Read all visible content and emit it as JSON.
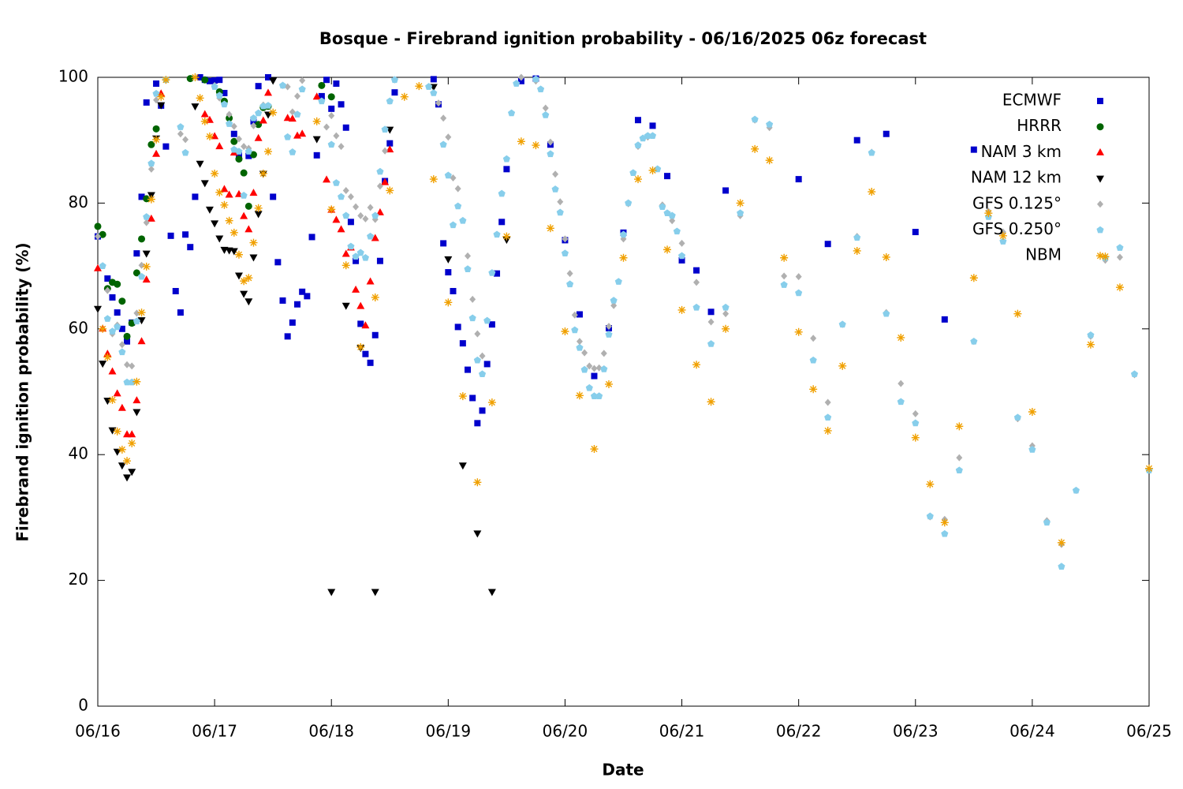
{
  "chart_data": {
    "type": "scatter",
    "title": "Bosque - Firebrand ignition probability - 06/16/2025 06z forecast",
    "xlabel": "Date",
    "ylabel": "Firebrand ignition probability (%)",
    "xlim": [
      0,
      216
    ],
    "ylim": [
      0,
      100
    ],
    "xticks": [
      {
        "value": 0,
        "label": "06/16"
      },
      {
        "value": 24,
        "label": "06/17"
      },
      {
        "value": 48,
        "label": "06/18"
      },
      {
        "value": 72,
        "label": "06/19"
      },
      {
        "value": 96,
        "label": "06/20"
      },
      {
        "value": 120,
        "label": "06/21"
      },
      {
        "value": 144,
        "label": "06/22"
      },
      {
        "value": 168,
        "label": "06/23"
      },
      {
        "value": 192,
        "label": "06/24"
      },
      {
        "value": 216,
        "label": "06/25"
      }
    ],
    "yticks": [
      0,
      20,
      40,
      60,
      80,
      100
    ],
    "legend": "top-right",
    "series": [
      {
        "name": "ECMWF",
        "color": "#0000cc",
        "marker": "square",
        "x": [
          0,
          2,
          3,
          4,
          5,
          6,
          7,
          8,
          9,
          10,
          12,
          13,
          14,
          15,
          16,
          17,
          18,
          19,
          20,
          21,
          22,
          23,
          24,
          25,
          26,
          28,
          29,
          31,
          32,
          33,
          35,
          36,
          37,
          38,
          39,
          40,
          41,
          42,
          43,
          44,
          45,
          46,
          47,
          48,
          49,
          50,
          51,
          52,
          53,
          54,
          55,
          56,
          57,
          58,
          59,
          60,
          61,
          69,
          70,
          71,
          72,
          73,
          74,
          75,
          76,
          77,
          78,
          79,
          80,
          81,
          82,
          83,
          84,
          87,
          90,
          93,
          96,
          99,
          102,
          105,
          108,
          111,
          114,
          117,
          120,
          123,
          126,
          129,
          144,
          150,
          156,
          162,
          168,
          174,
          180
        ],
        "values": [
          74.7,
          68,
          65,
          62.6,
          60,
          58,
          61,
          72,
          81,
          96,
          99,
          95.5,
          89,
          74.8,
          66,
          62.6,
          75,
          73,
          81,
          100,
          99.6,
          99.4,
          99.5,
          99.6,
          97.5,
          91,
          87.6,
          87.5,
          93,
          98.6,
          100,
          81,
          70.6,
          64.5,
          58.8,
          61,
          63.9,
          65.9,
          65.2,
          74.6,
          87.6,
          97,
          99.6,
          95,
          99,
          95.7,
          92,
          77,
          70.8,
          60.8,
          56,
          54.6,
          59,
          70.8,
          83.5,
          89.5,
          97.6,
          99.7,
          95.7,
          73.6,
          69,
          66,
          60.3,
          57.7,
          53.5,
          49,
          45,
          47,
          54.4,
          60.7,
          68.8,
          77,
          85.4,
          99.4,
          99.8,
          89.3,
          74.1,
          62.3,
          52.5,
          60.1,
          75.3,
          93.2,
          92.3,
          84.3,
          70.9,
          69.3,
          62.7,
          82,
          83.8,
          73.5,
          90,
          91,
          75.4,
          61.5,
          88.5
        ]
      },
      {
        "name": "HRRR",
        "color": "#006400",
        "marker": "circle",
        "x": [
          0,
          1,
          2,
          3,
          4,
          5,
          6,
          7,
          8,
          9,
          10,
          11,
          12,
          19,
          22,
          25,
          26,
          27,
          28,
          29,
          30,
          31,
          32,
          33,
          34,
          35,
          46,
          48
        ],
        "values": [
          76.3,
          75,
          66.4,
          67.4,
          67.1,
          64.4,
          58.8,
          60.9,
          68.9,
          74.3,
          80.7,
          89.3,
          91.8,
          99.8,
          99.6,
          97.7,
          96.2,
          93.5,
          89.8,
          87,
          84.8,
          79.5,
          87.7,
          92.5,
          95.2,
          95.4,
          98.7,
          96.9
        ]
      },
      {
        "name": "NAM 3 km",
        "color": "#ff0000",
        "marker": "triangle-up",
        "x": [
          0,
          1,
          2,
          3,
          4,
          5,
          6,
          7,
          8,
          9,
          10,
          11,
          12,
          13,
          22,
          23,
          24,
          25,
          26,
          27,
          28,
          29,
          30,
          31,
          32,
          33,
          34,
          35,
          39,
          40,
          41,
          42,
          45,
          47,
          48,
          49,
          50,
          51,
          52,
          53,
          54,
          55,
          56,
          57,
          58,
          59,
          60
        ],
        "values": [
          69.6,
          60,
          56,
          53.2,
          49.7,
          47.4,
          43.2,
          43.2,
          48.6,
          58,
          67.8,
          77.5,
          87.8,
          97.4,
          94.1,
          93.2,
          90.6,
          89,
          82.2,
          81.3,
          88,
          81.4,
          77.9,
          75.8,
          81.6,
          90.3,
          93.1,
          97.5,
          93.5,
          93.4,
          90.7,
          91,
          96.9,
          83.7,
          78.9,
          77.3,
          75.8,
          71.9,
          72.9,
          66.2,
          63.6,
          60.5,
          67.5,
          74.4,
          78.5,
          83.3,
          88.5
        ]
      },
      {
        "name": "NAM 12 km",
        "color": "#000000",
        "marker": "triangle-down",
        "x": [
          0,
          1,
          2,
          3,
          4,
          5,
          6,
          7,
          8,
          9,
          10,
          11,
          12,
          13,
          20,
          21,
          22,
          23,
          24,
          25,
          26,
          27,
          28,
          29,
          30,
          31,
          32,
          33,
          34,
          35,
          36,
          45,
          48,
          51,
          54,
          57,
          60,
          69,
          72,
          75,
          78,
          81,
          84
        ],
        "values": [
          63.2,
          54.5,
          48.6,
          43.9,
          40.5,
          38.3,
          36.4,
          37.3,
          46.8,
          61.4,
          72,
          81.3,
          90.3,
          95.6,
          95.4,
          86.3,
          83.2,
          79,
          76.8,
          74.4,
          72.6,
          72.5,
          72.4,
          68.5,
          65.6,
          64.4,
          71.4,
          78.3,
          84.7,
          94.1,
          99.5,
          90.2,
          18.2,
          63.7,
          57,
          18.2,
          91.7,
          98.5,
          71.1,
          38.3,
          27.5,
          18.2,
          74.2
        ]
      },
      {
        "name": "GFS 0.125°",
        "color": "#b0b0b0",
        "marker": "diamond",
        "x": [
          0,
          2,
          3,
          4,
          5,
          6,
          7,
          8,
          9,
          10,
          11,
          12,
          14,
          17,
          18,
          24,
          25,
          27,
          28,
          29,
          30,
          31,
          32,
          34,
          38,
          39,
          40,
          41,
          42,
          47,
          48,
          49,
          50,
          51,
          52,
          53,
          54,
          55,
          56,
          57,
          58,
          59,
          60,
          61,
          70,
          71,
          72,
          73,
          74,
          76,
          77,
          78,
          79,
          87,
          90,
          92,
          93,
          94,
          95,
          96,
          97,
          98,
          99,
          100,
          101,
          102,
          103,
          104,
          105,
          106,
          108,
          109,
          111,
          113,
          116,
          118,
          120,
          123,
          126,
          129,
          132,
          135,
          138,
          141,
          144,
          147,
          150,
          153,
          156,
          159,
          162,
          165,
          168,
          171,
          174,
          177,
          180,
          183,
          186,
          189,
          192,
          195,
          198,
          201,
          204,
          207,
          210,
          213,
          216
        ],
        "values": [
          74.7,
          66.1,
          59.2,
          60.6,
          57.5,
          54.3,
          54.1,
          62.5,
          70.1,
          76.9,
          85.4,
          96.4,
          99.7,
          91,
          90.1,
          98.7,
          96.7,
          94.1,
          92.2,
          90.2,
          89,
          88.7,
          92.3,
          95.6,
          98.7,
          98.5,
          94.5,
          97,
          99.5,
          92.1,
          93.9,
          90.7,
          89,
          82,
          81,
          79.4,
          78,
          77.5,
          79.3,
          77.4,
          82.7,
          88.3,
          96.2,
          99.6,
          95.9,
          93.5,
          90.5,
          84,
          82.3,
          71.6,
          64.7,
          59.2,
          55.7,
          100,
          99.4,
          95.1,
          89.7,
          84.6,
          80.2,
          74.3,
          68.8,
          62.2,
          58,
          56.2,
          54.1,
          53.7,
          53.8,
          56.1,
          60.4,
          63.7,
          74.3,
          79.9,
          89,
          90.5,
          79.7,
          77.2,
          73.6,
          67.4,
          61.1,
          62.4,
          78,
          93.2,
          92,
          68.4,
          68.3,
          58.5,
          48.3,
          60.7,
          74.7,
          88.1,
          62.6,
          51.3,
          46.5,
          30.1,
          29.7,
          39.5,
          58,
          78.7,
          75.4,
          45.7,
          41.4,
          29.5,
          25.7,
          34.3,
          58.8,
          70.9,
          71.4,
          52.7,
          37.6
        ]
      },
      {
        "name": "GFS 0.250°",
        "color": "#87ceeb",
        "marker": "pentagon",
        "x": [
          1,
          2,
          3,
          4,
          5,
          6,
          7,
          8,
          9,
          10,
          11,
          12,
          14,
          17,
          18,
          24,
          25,
          26,
          27,
          28,
          29,
          30,
          31,
          32,
          33,
          34,
          35,
          38,
          39,
          40,
          41,
          42,
          46,
          48,
          49,
          50,
          51,
          52,
          53,
          54,
          55,
          56,
          57,
          58,
          59,
          60,
          61,
          68,
          69,
          71,
          72,
          73,
          74,
          75,
          76,
          77,
          78,
          79,
          80,
          81,
          82,
          83,
          84,
          85,
          86,
          90,
          91,
          92,
          93,
          94,
          95,
          96,
          97,
          98,
          99,
          100,
          101,
          102,
          103,
          104,
          105,
          106,
          107,
          108,
          109,
          110,
          111,
          112,
          113,
          114,
          115,
          116,
          117,
          118,
          119,
          120,
          123,
          126,
          129,
          132,
          135,
          138,
          141,
          144,
          147,
          150,
          153,
          156,
          159,
          162,
          165,
          168,
          171,
          174,
          177,
          180,
          183,
          186,
          189,
          192,
          195,
          198,
          201,
          204,
          207,
          210,
          213,
          216
        ],
        "values": [
          70,
          61.6,
          59.6,
          60.3,
          56.3,
          51.5,
          51.5,
          61.2,
          68.3,
          77.8,
          86.3,
          97.4,
          99.6,
          92.1,
          88,
          98.5,
          97.1,
          95.7,
          92.6,
          88.5,
          88.2,
          81.2,
          88.2,
          93.5,
          94.3,
          95.4,
          95.5,
          98.7,
          90.5,
          88.1,
          94.1,
          98.1,
          96.2,
          89.3,
          83.2,
          81,
          78,
          73.1,
          71.5,
          72.1,
          71.3,
          74.7,
          78,
          85,
          91.7,
          96.2,
          99.6,
          98.5,
          97.5,
          89.3,
          84.4,
          76.5,
          79.5,
          77.2,
          69.5,
          61.7,
          55,
          52.8,
          61.3,
          68.9,
          75,
          81.5,
          87,
          94.3,
          99,
          99.7,
          98.1,
          94,
          87.8,
          82.2,
          78.5,
          72,
          67.1,
          59.8,
          57,
          53.5,
          50.6,
          49.3,
          49.3,
          53.6,
          59.1,
          64.5,
          67.5,
          75,
          80,
          84.8,
          89.2,
          90.3,
          90.7,
          90.7,
          85.4,
          79.4,
          78.4,
          78,
          75.5,
          71.6,
          63.4,
          57.6,
          63.4,
          78.4,
          93.3,
          92.5,
          67,
          65.7,
          55,
          45.9,
          60.7,
          74.5,
          88,
          62.4,
          48.4,
          45,
          30.2,
          27.4,
          37.5,
          58,
          77.8,
          73.9,
          45.9,
          40.8,
          29.2,
          22.2,
          34.3,
          59,
          71.3,
          72.9,
          52.8,
          37.5
        ]
      },
      {
        "name": "NBM",
        "color": "#f0a000",
        "marker": "asterisk",
        "x": [
          1,
          2,
          3,
          4,
          5,
          6,
          7,
          8,
          9,
          10,
          11,
          12,
          13,
          14,
          20,
          21,
          22,
          23,
          24,
          25,
          26,
          27,
          28,
          29,
          30,
          31,
          32,
          33,
          34,
          35,
          36,
          45,
          48,
          51,
          54,
          57,
          60,
          63,
          66,
          69,
          72,
          75,
          78,
          81,
          84,
          87,
          90,
          93,
          96,
          99,
          102,
          105,
          108,
          111,
          114,
          117,
          120,
          123,
          126,
          129,
          132,
          135,
          138,
          141,
          144,
          147,
          150,
          153,
          156,
          159,
          162,
          165,
          168,
          171,
          174,
          177,
          180,
          183,
          186,
          189,
          192,
          198,
          204,
          207,
          210,
          216
        ],
        "values": [
          60,
          55.5,
          48.7,
          43.7,
          40.8,
          39,
          41.8,
          51.6,
          62.6,
          69.9,
          80.6,
          90.1,
          96.9,
          99.6,
          100,
          96.7,
          93,
          90.6,
          84.7,
          81.7,
          79.7,
          77.2,
          75.3,
          71.8,
          67.6,
          68.1,
          73.7,
          79.2,
          84.7,
          88.2,
          94.4,
          93,
          79,
          70.1,
          57.1,
          65,
          82,
          96.9,
          98.6,
          83.8,
          64.2,
          49.3,
          35.6,
          48.3,
          74.7,
          89.8,
          89.2,
          76,
          59.6,
          49.4,
          40.9,
          51.2,
          71.3,
          83.8,
          85.2,
          72.6,
          63,
          54.3,
          48.4,
          60,
          80,
          88.6,
          86.8,
          71.3,
          59.5,
          50.4,
          43.8,
          54.1,
          72.4,
          81.8,
          71.4,
          58.6,
          42.7,
          35.3,
          29.2,
          44.5,
          68.1,
          78.4,
          74.8,
          62.4,
          46.8,
          26,
          57.5,
          71.5,
          66.6,
          37.8
        ]
      }
    ]
  }
}
